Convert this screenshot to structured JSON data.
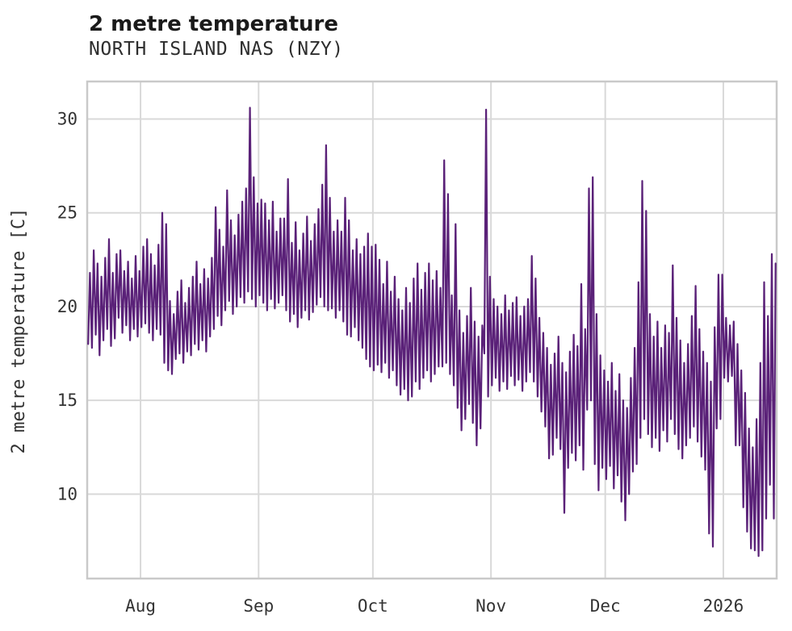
{
  "header": {
    "title": "2 metre temperature",
    "subtitle": "NORTH ISLAND NAS (NZY)"
  },
  "colors": {
    "line": "#5a2178",
    "grid": "#d9d9d9",
    "plot_border": "#c9c9c9",
    "title_text": "#1a1a1a",
    "axis_text": "#333333",
    "background": "#ffffff"
  },
  "chart_data": {
    "type": "line",
    "title": "2 metre temperature",
    "subtitle": "NORTH ISLAND NAS (NZY)",
    "ylabel": "2 metre temperature [C]",
    "xlabel": "",
    "grid": true,
    "legend": false,
    "ylim": [
      5.5,
      32.0
    ],
    "y_ticks": [
      10,
      15,
      20,
      25,
      30
    ],
    "x_tick_labels": [
      "Aug",
      "Sep",
      "Oct",
      "Nov",
      "Dec",
      "2026"
    ],
    "x_tick_day_index": [
      14,
      45,
      75,
      106,
      136,
      167
    ],
    "x_start": "2025-07-18",
    "x_end": "2026-01-15",
    "total_days": 181,
    "series": [
      {
        "name": "2 metre temperature",
        "color": "#5a2178",
        "sampling": "daily min then daily max, one pair per day",
        "daily_min": [
          18.0,
          17.8,
          18.5,
          17.4,
          18.2,
          18.8,
          17.9,
          18.3,
          19.4,
          18.6,
          19.0,
          18.2,
          18.8,
          18.4,
          18.9,
          19.1,
          18.6,
          18.2,
          18.8,
          18.5,
          17.0,
          16.6,
          16.4,
          17.2,
          17.5,
          17.0,
          17.6,
          17.4,
          18.0,
          17.7,
          18.2,
          17.6,
          18.4,
          18.8,
          19.5,
          19.0,
          19.8,
          20.3,
          19.6,
          20.0,
          20.5,
          20.2,
          20.8,
          20.4,
          20.0,
          20.6,
          20.2,
          19.8,
          20.4,
          19.9,
          20.2,
          20.6,
          19.8,
          19.2,
          19.6,
          18.9,
          19.4,
          19.8,
          19.3,
          19.7,
          20.1,
          20.5,
          20.0,
          19.8,
          19.9,
          19.4,
          19.8,
          19.2,
          18.5,
          18.4,
          18.9,
          18.2,
          17.8,
          17.2,
          16.8,
          16.6,
          16.9,
          16.5,
          17.0,
          16.2,
          16.6,
          15.8,
          15.3,
          15.6,
          15.0,
          15.2,
          16.0,
          15.6,
          16.2,
          16.6,
          16.0,
          16.4,
          16.8,
          16.8,
          17.0,
          16.4,
          15.8,
          14.6,
          13.4,
          14.0,
          14.8,
          13.8,
          12.6,
          13.5,
          17.5,
          15.2,
          15.8,
          16.2,
          15.5,
          16.0,
          15.6,
          16.3,
          15.8,
          16.1,
          15.5,
          16.0,
          16.5,
          16.0,
          15.2,
          14.4,
          13.6,
          11.9,
          12.1,
          13.0,
          12.4,
          9.0,
          11.4,
          12.2,
          11.8,
          12.6,
          11.3,
          14.5,
          15.0,
          11.6,
          10.2,
          11.4,
          10.8,
          11.5,
          10.3,
          11.0,
          9.6,
          8.6,
          10.0,
          11.2,
          11.6,
          13.0,
          14.0,
          13.2,
          12.5,
          13.0,
          12.3,
          13.4,
          12.8,
          14.0,
          13.2,
          12.4,
          11.9,
          12.6,
          13.0,
          13.6,
          12.8,
          12.0,
          11.3,
          7.9,
          7.2,
          13.5,
          14.0,
          16.2,
          16.0,
          16.3,
          12.6,
          12.6,
          9.3,
          8.0,
          7.1,
          7.0,
          6.7,
          7.0,
          8.7,
          10.5,
          8.7
        ],
        "daily_max": [
          21.8,
          23.0,
          22.3,
          21.6,
          22.6,
          23.6,
          21.8,
          22.8,
          23.0,
          21.9,
          22.4,
          21.5,
          22.7,
          21.9,
          23.2,
          23.6,
          22.8,
          22.2,
          23.3,
          25.0,
          24.4,
          20.3,
          19.6,
          20.8,
          21.4,
          20.2,
          21.0,
          21.6,
          22.4,
          21.2,
          22.0,
          21.5,
          22.6,
          25.3,
          24.1,
          23.2,
          26.2,
          24.6,
          23.8,
          24.9,
          25.6,
          26.3,
          30.6,
          26.9,
          25.5,
          25.7,
          25.5,
          24.6,
          25.6,
          24.0,
          24.7,
          24.7,
          26.8,
          23.4,
          24.5,
          23.0,
          23.9,
          24.8,
          23.5,
          24.4,
          25.2,
          26.5,
          28.6,
          25.8,
          24.0,
          24.6,
          24.0,
          25.8,
          24.6,
          23.0,
          23.6,
          22.8,
          23.2,
          23.9,
          23.2,
          23.3,
          22.5,
          21.2,
          22.4,
          20.8,
          21.6,
          20.4,
          19.8,
          21.0,
          20.2,
          21.5,
          22.3,
          20.9,
          21.8,
          22.3,
          21.4,
          21.9,
          21.0,
          27.8,
          26.0,
          20.6,
          24.4,
          19.8,
          18.6,
          19.5,
          21.0,
          19.2,
          18.4,
          19.0,
          30.5,
          21.6,
          20.4,
          20.0,
          19.6,
          20.6,
          19.8,
          20.2,
          20.5,
          19.5,
          20.0,
          20.4,
          22.7,
          21.5,
          19.4,
          18.6,
          17.8,
          16.9,
          17.5,
          18.4,
          17.0,
          16.5,
          17.6,
          18.5,
          17.9,
          21.2,
          18.8,
          26.3,
          26.9,
          19.6,
          17.4,
          16.6,
          16.0,
          17.0,
          15.5,
          16.4,
          15.0,
          14.6,
          16.2,
          17.8,
          21.3,
          26.7,
          25.1,
          19.6,
          18.4,
          19.2,
          17.8,
          19.0,
          18.6,
          22.2,
          19.4,
          18.2,
          17.0,
          18.0,
          19.5,
          21.1,
          18.8,
          17.6,
          17.0,
          16.0,
          18.9,
          21.7,
          21.7,
          19.4,
          19.0,
          19.2,
          18.0,
          16.6,
          15.4,
          13.5,
          12.5,
          14.0,
          17.0,
          21.3,
          19.5,
          22.8,
          22.3
        ]
      }
    ]
  }
}
